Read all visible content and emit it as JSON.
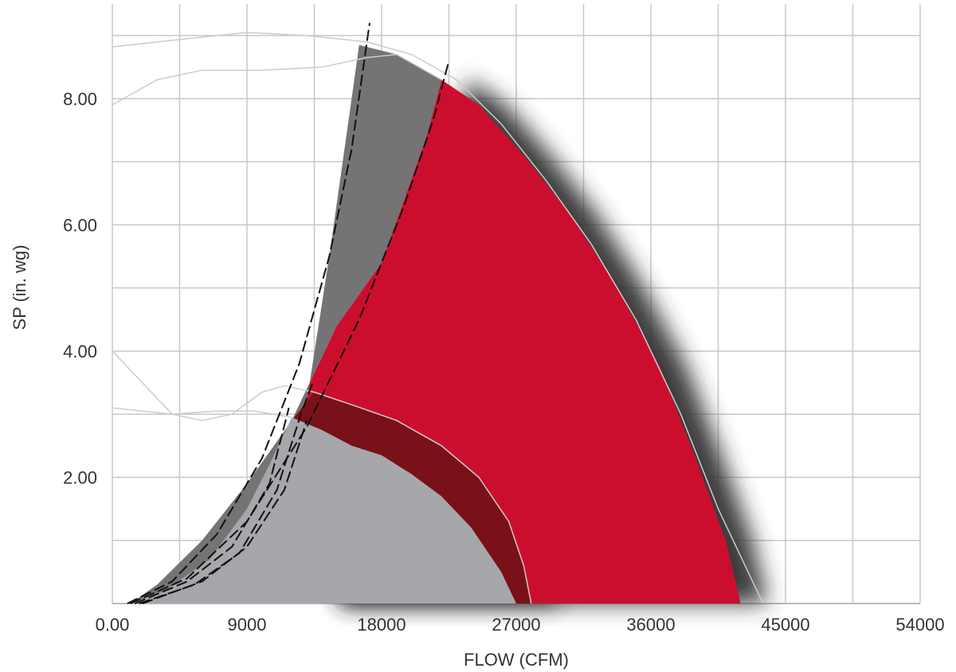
{
  "chart_data": {
    "type": "area",
    "xlabel": "FLOW (CFM)",
    "ylabel": "SP (in. wg)",
    "xlim": [
      0,
      54000
    ],
    "ylim": [
      0,
      9.5
    ],
    "x_ticks": [
      "0.00",
      "9000",
      "18000",
      "27000",
      "36000",
      "45000",
      "54000"
    ],
    "y_ticks": [
      "2.00",
      "4.00",
      "6.00",
      "8.00"
    ],
    "grid": true,
    "colors": {
      "red_region": "#cc0e2e",
      "dark_grey_region": "#757374",
      "light_grey_region": "#a6a7aa",
      "dark_red_band": "#7a1018",
      "shadow": "#333333",
      "grid": "#c8c8c8",
      "outline": "#cccccc",
      "dashed_line": "#111111"
    },
    "regions": [
      {
        "id": "large-fan-performance-region",
        "color": "#cc0e2e",
        "shadow": true,
        "points": [
          [
            22000,
            8.3
          ],
          [
            24500,
            7.9
          ],
          [
            27500,
            7.1
          ],
          [
            30500,
            6.2
          ],
          [
            33500,
            5.1
          ],
          [
            36500,
            3.8
          ],
          [
            39000,
            2.3
          ],
          [
            41000,
            1.0
          ],
          [
            42000,
            0
          ],
          [
            13500,
            0
          ],
          [
            12000,
            2.9
          ],
          [
            15000,
            4.4
          ],
          [
            18000,
            5.4
          ],
          [
            21000,
            7.4
          ]
        ]
      },
      {
        "id": "large-fan-low-flow-region",
        "color": "#757374",
        "shadow": false,
        "points": [
          [
            16500,
            8.85
          ],
          [
            19000,
            8.7
          ],
          [
            22000,
            8.3
          ],
          [
            21000,
            7.4
          ],
          [
            18000,
            5.4
          ],
          [
            15000,
            4.4
          ],
          [
            12000,
            2.9
          ],
          [
            9000,
            1.9
          ],
          [
            6000,
            1.0
          ],
          [
            3000,
            0.3
          ],
          [
            1200,
            0
          ],
          [
            9000,
            0
          ],
          [
            11000,
            1.4
          ],
          [
            12800,
            2.9
          ],
          [
            14500,
            5.5
          ],
          [
            16000,
            8.0
          ]
        ]
      },
      {
        "id": "small-fan-dark-band",
        "color": "#7a1018",
        "shadow": true,
        "points": [
          [
            13500,
            3.35
          ],
          [
            16000,
            3.15
          ],
          [
            19000,
            2.9
          ],
          [
            22000,
            2.5
          ],
          [
            24500,
            2.0
          ],
          [
            26500,
            1.3
          ],
          [
            27500,
            0.6
          ],
          [
            28000,
            0
          ],
          [
            13500,
            0
          ],
          [
            12000,
            2.9
          ]
        ]
      },
      {
        "id": "small-fan-performance-region",
        "color": "#a6a7aa",
        "shadow": false,
        "points": [
          [
            12000,
            2.95
          ],
          [
            14000,
            2.75
          ],
          [
            16000,
            2.5
          ],
          [
            18000,
            2.35
          ],
          [
            20000,
            2.05
          ],
          [
            22000,
            1.7
          ],
          [
            24000,
            1.2
          ],
          [
            26000,
            0.5
          ],
          [
            27000,
            0
          ],
          [
            1200,
            0
          ],
          [
            3500,
            0.2
          ],
          [
            6500,
            0.7
          ],
          [
            9000,
            1.5
          ],
          [
            10500,
            2.2
          ],
          [
            11500,
            2.7
          ]
        ]
      }
    ],
    "outline_curves": [
      [
        [
          0,
          8.82
        ],
        [
          5000,
          8.95
        ],
        [
          9000,
          9.05
        ],
        [
          13000,
          9.0
        ],
        [
          17000,
          8.9
        ],
        [
          20000,
          8.7
        ],
        [
          23000,
          8.3
        ],
        [
          26000,
          7.6
        ],
        [
          29000,
          6.7
        ],
        [
          32000,
          5.7
        ],
        [
          35000,
          4.5
        ],
        [
          38000,
          3.0
        ],
        [
          40500,
          1.5
        ],
        [
          42500,
          0.5
        ],
        [
          43500,
          0
        ]
      ],
      [
        [
          0,
          7.9
        ],
        [
          3000,
          8.3
        ],
        [
          6000,
          8.45
        ],
        [
          10000,
          8.45
        ],
        [
          14000,
          8.5
        ],
        [
          17000,
          8.65
        ],
        [
          19000,
          8.7
        ],
        [
          22000,
          8.3
        ]
      ],
      [
        [
          0,
          4.0
        ],
        [
          2000,
          3.5
        ],
        [
          4000,
          3.0
        ],
        [
          6000,
          2.9
        ],
        [
          8000,
          3.0
        ],
        [
          10000,
          3.35
        ],
        [
          11500,
          3.45
        ],
        [
          13500,
          3.35
        ]
      ],
      [
        [
          0,
          3.1
        ],
        [
          4000,
          3.0
        ],
        [
          7000,
          3.05
        ],
        [
          9500,
          3.05
        ],
        [
          12000,
          2.95
        ]
      ],
      [
        [
          13500,
          3.35
        ],
        [
          16000,
          3.15
        ],
        [
          19000,
          2.9
        ],
        [
          22000,
          2.5
        ],
        [
          24500,
          2.0
        ],
        [
          26500,
          1.3
        ],
        [
          27500,
          0.6
        ],
        [
          28000,
          0
        ]
      ]
    ],
    "dashed_system_curves": [
      [
        [
          1000,
          0
        ],
        [
          4000,
          0.35
        ],
        [
          7000,
          1.1
        ],
        [
          10000,
          2.3
        ],
        [
          12500,
          3.8
        ],
        [
          14500,
          5.5
        ],
        [
          16000,
          7.2
        ],
        [
          17200,
          9.2
        ]
      ],
      [
        [
          1200,
          0
        ],
        [
          5000,
          0.4
        ],
        [
          9000,
          1.3
        ],
        [
          13000,
          2.8
        ],
        [
          16500,
          4.5
        ],
        [
          19500,
          6.3
        ],
        [
          21500,
          7.7
        ],
        [
          22500,
          8.6
        ]
      ],
      [
        [
          1500,
          0
        ],
        [
          5000,
          0.35
        ],
        [
          8000,
          0.9
        ],
        [
          10500,
          1.9
        ],
        [
          11800,
          3.1
        ]
      ],
      [
        [
          1800,
          0
        ],
        [
          5500,
          0.3
        ],
        [
          8500,
          0.8
        ],
        [
          11000,
          1.8
        ],
        [
          12600,
          3.0
        ],
        [
          13400,
          3.5
        ]
      ],
      [
        [
          2000,
          0
        ],
        [
          6000,
          0.35
        ],
        [
          9000,
          0.9
        ],
        [
          11500,
          1.8
        ],
        [
          13000,
          2.9
        ]
      ]
    ]
  }
}
